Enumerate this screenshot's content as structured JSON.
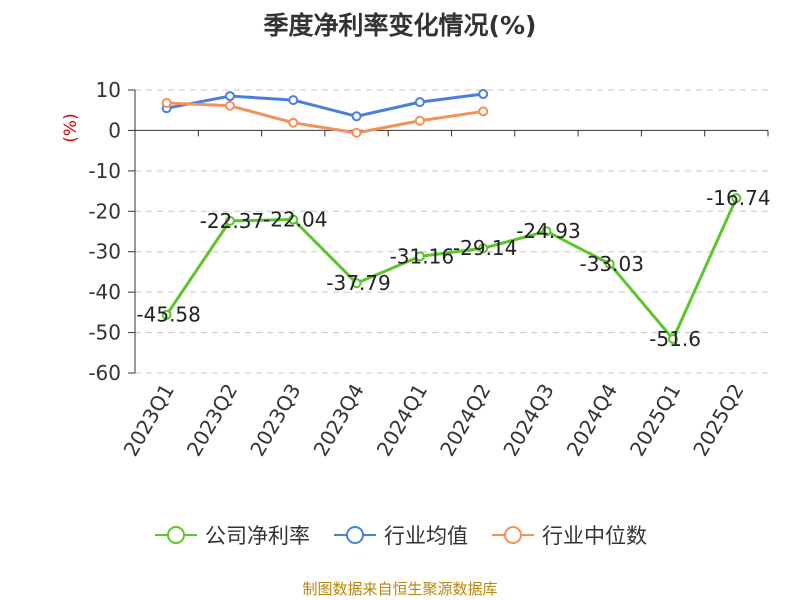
{
  "chart_data": {
    "type": "line",
    "title": "季度净利率变化情况(%)",
    "ylabel": "(%)",
    "ylim": [
      -60,
      10
    ],
    "yticks": [
      10,
      0,
      -10,
      -20,
      -30,
      -40,
      -50,
      -60
    ],
    "categories": [
      "2023Q1",
      "2023Q2",
      "2023Q3",
      "2023Q4",
      "2024Q1",
      "2024Q2",
      "2024Q3",
      "2024Q4",
      "2025Q1",
      "2025Q2"
    ],
    "grid": true,
    "legend_position": "bottom",
    "series": [
      {
        "name": "公司净利率",
        "color": "#5cc52a",
        "values": [
          -45.58,
          -22.37,
          -22.04,
          -37.79,
          -31.16,
          -29.14,
          -24.93,
          -33.03,
          -51.6,
          -16.74
        ],
        "labels": [
          "-45.58",
          "-22.37",
          "-22.04",
          "-37.79",
          "-31.16",
          "-29.14",
          "-24.93",
          "-33.03",
          "-51.6",
          "-16.74"
        ]
      },
      {
        "name": "行业均值",
        "color": "#4a7fdc",
        "values": [
          5.5,
          8.5,
          7.5,
          3.5,
          7.0,
          9.0,
          null,
          null,
          null,
          null
        ]
      },
      {
        "name": "行业中位数",
        "color": "#f2915a",
        "values": [
          6.8,
          6.1,
          1.9,
          -0.6,
          2.4,
          4.7,
          null,
          null,
          null,
          null
        ]
      }
    ]
  },
  "source_note": "制图数据来自恒生聚源数据库"
}
